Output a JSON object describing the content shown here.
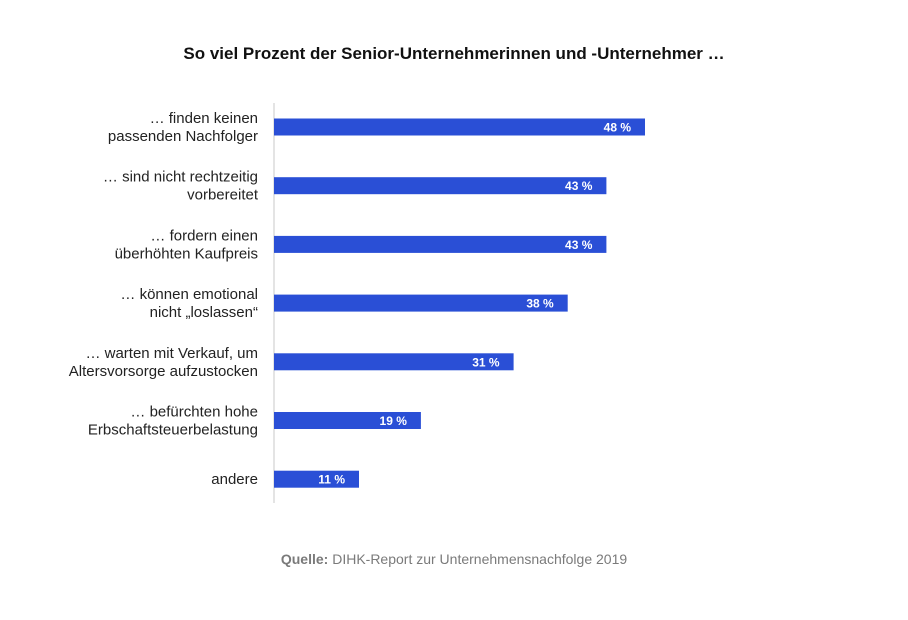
{
  "chart_data": {
    "type": "bar",
    "orientation": "horizontal",
    "title": "So viel Prozent der Senior-Unternehmerinnen und -Unternehmer …",
    "categories": [
      [
        "… finden keinen",
        "passenden Nachfolger"
      ],
      [
        "… sind nicht rechtzeitig",
        "vorbereitet"
      ],
      [
        "… fordern einen",
        "überhöhten Kaufpreis"
      ],
      [
        "… können emotional",
        "nicht „loslassen“"
      ],
      [
        "… warten mit Verkauf, um",
        "Altersvorsorge aufzustocken"
      ],
      [
        "… befürchten hohe",
        "Erbschaftsteuerbelastung"
      ],
      [
        "andere"
      ]
    ],
    "values": [
      48,
      43,
      43,
      38,
      31,
      19,
      11
    ],
    "value_labels": [
      "48 %",
      "43 %",
      "43 %",
      "38 %",
      "31 %",
      "19 %",
      "11 %"
    ],
    "unit": "%",
    "xlim": [
      0,
      80
    ],
    "grid": false,
    "bar_color": "#2a4fd6"
  },
  "source": {
    "label": "Quelle:",
    "text": " DIHK-Report zur Unternehmensnachfolge 2019"
  }
}
